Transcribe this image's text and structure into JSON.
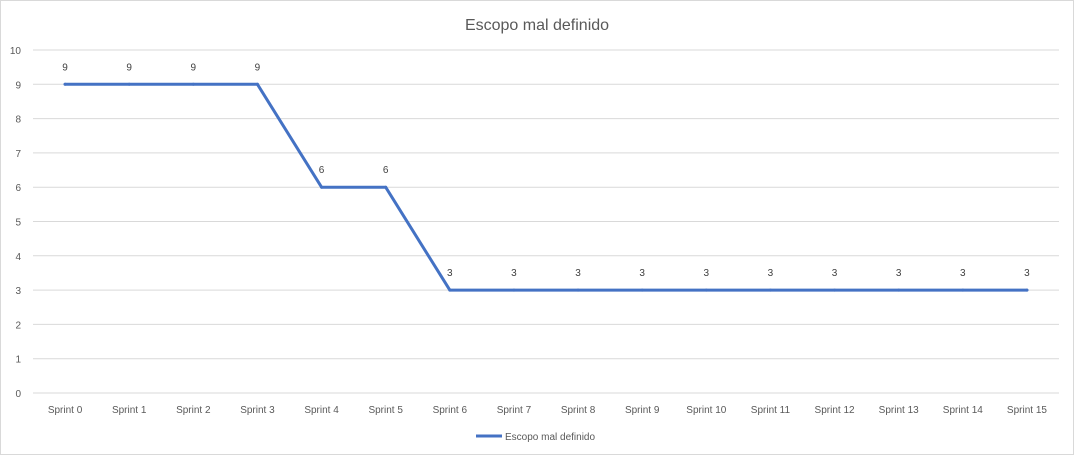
{
  "chart_data": {
    "type": "line",
    "title": "Escopo mal definido",
    "xlabel": "",
    "ylabel": "",
    "ylim": [
      0,
      10
    ],
    "yticks": [
      0,
      1,
      2,
      3,
      4,
      5,
      6,
      7,
      8,
      9,
      10
    ],
    "grid": true,
    "legend_position": "bottom",
    "categories": [
      "Sprint 0",
      "Sprint 1",
      "Sprint 2",
      "Sprint 3",
      "Sprint 4",
      "Sprint 5",
      "Sprint 6",
      "Sprint 7",
      "Sprint 8",
      "Sprint 9",
      "Sprint 10",
      "Sprint 11",
      "Sprint 12",
      "Sprint 13",
      "Sprint 14",
      "Sprint 15"
    ],
    "series": [
      {
        "name": "Escopo mal definido",
        "color": "#4472c4",
        "values": [
          9,
          9,
          9,
          9,
          6,
          6,
          3,
          3,
          3,
          3,
          3,
          3,
          3,
          3,
          3,
          3
        ]
      }
    ]
  }
}
